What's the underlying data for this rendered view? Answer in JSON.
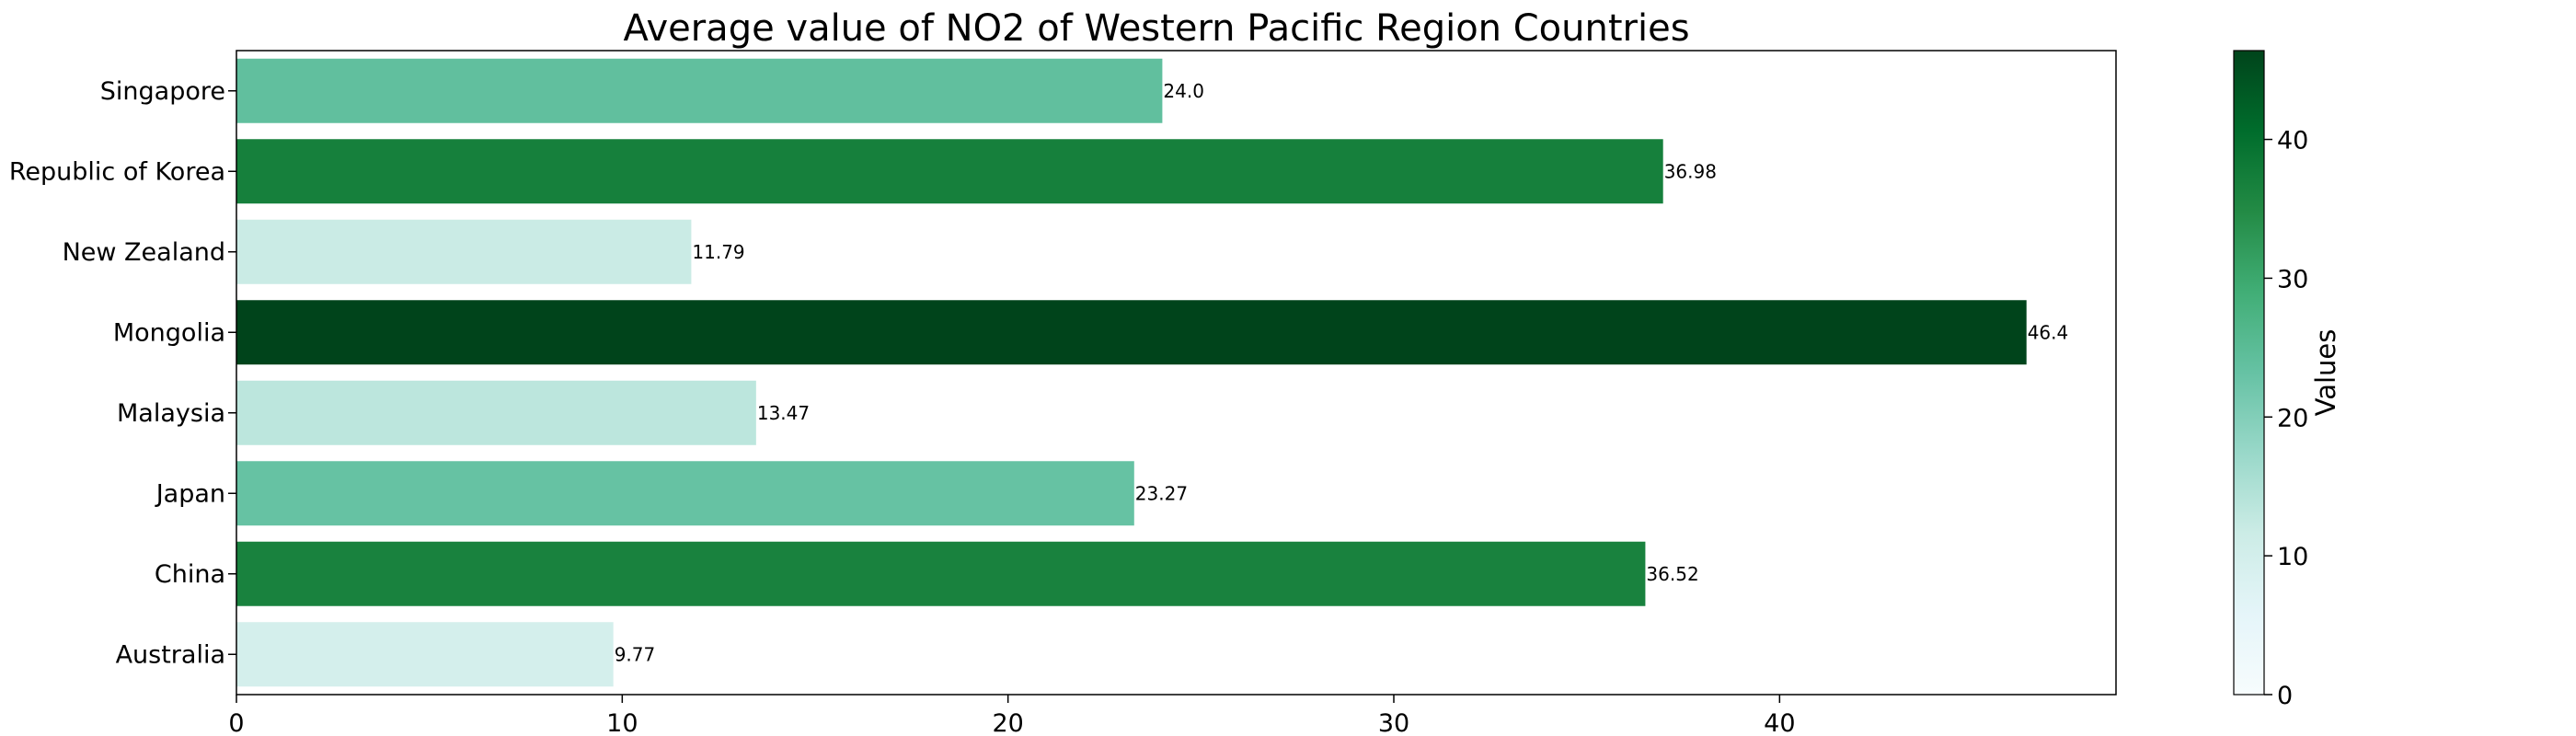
{
  "chart_data": {
    "type": "bar",
    "orientation": "horizontal",
    "title": "Average value of NO2 of Western Pacific Region Countries",
    "categories": [
      "Australia",
      "China",
      "Japan",
      "Malaysia",
      "Mongolia",
      "New Zealand",
      "Republic of Korea",
      "Singapore"
    ],
    "values": [
      9.77,
      36.52,
      23.27,
      13.47,
      46.4,
      11.79,
      36.98,
      24.0
    ],
    "value_labels": [
      "9.77",
      "36.52",
      "23.27",
      "13.47",
      "46.4",
      "11.79",
      "36.98",
      "24.0"
    ],
    "xlim": [
      0,
      48.72
    ],
    "x_ticks": [
      0,
      10,
      20,
      30,
      40
    ],
    "xlabel": "",
    "ylabel": "",
    "grid": false,
    "colormap": "BuGn",
    "colorbar": {
      "label": "Values",
      "range": [
        0,
        46.4
      ],
      "ticks": [
        0,
        10,
        20,
        30,
        40
      ]
    }
  }
}
